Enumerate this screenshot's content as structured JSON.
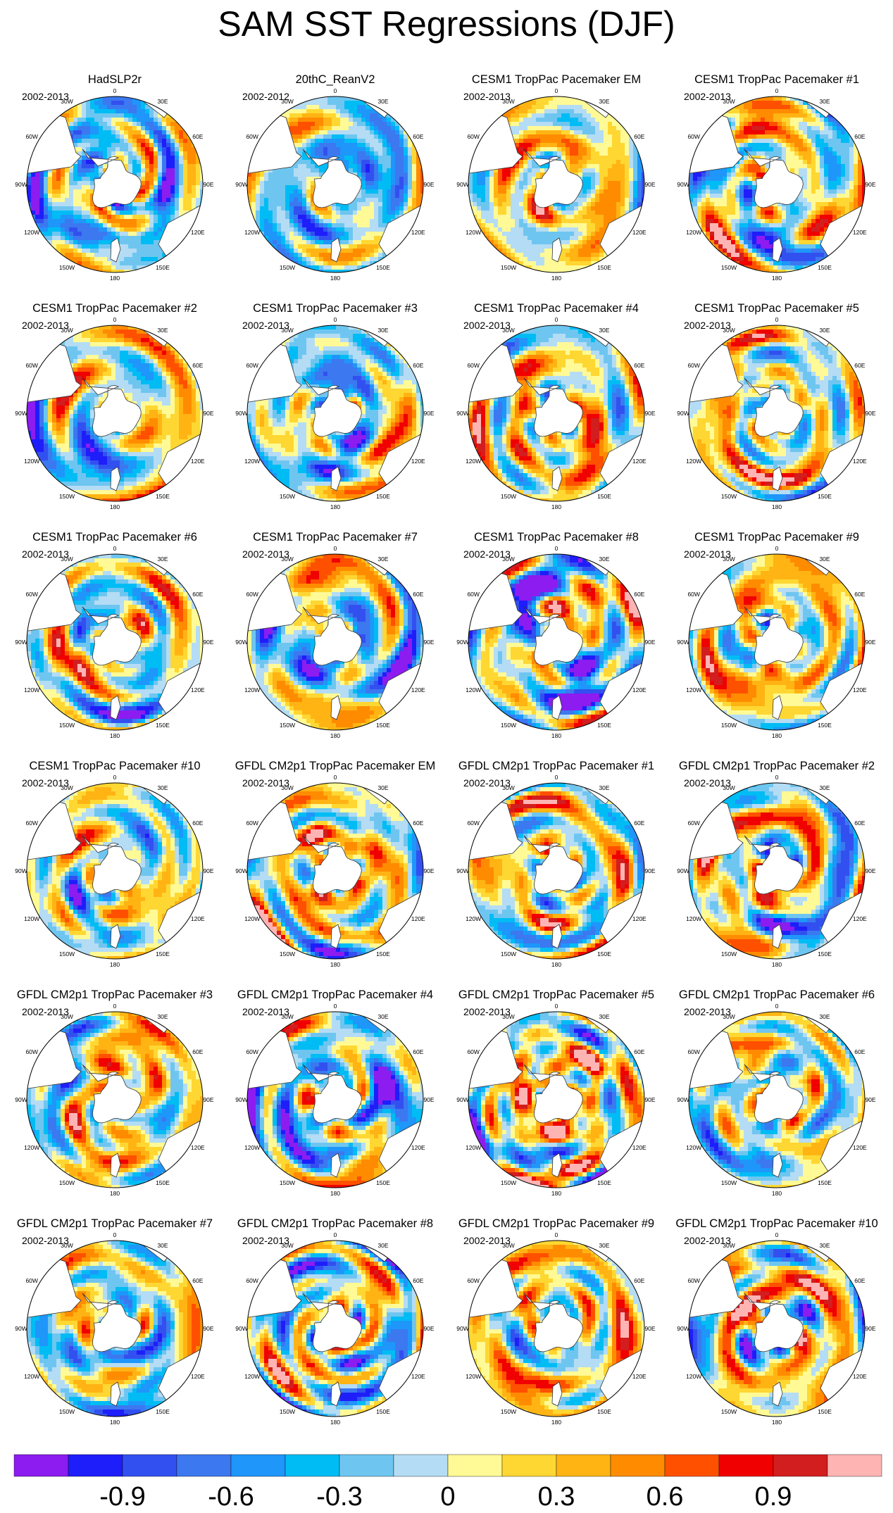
{
  "title": "SAM SST Regressions (DJF)",
  "colorbar": {
    "colors": [
      "#8c1cf0",
      "#1e1efa",
      "#3250f0",
      "#3c78f0",
      "#1e96fa",
      "#00bcf5",
      "#6ec6f0",
      "#b4dcf5",
      "#fffa96",
      "#ffd732",
      "#ffb414",
      "#ff8c00",
      "#ff5000",
      "#f00000",
      "#d21e1e",
      "#ffb4b4"
    ],
    "ticks": [
      {
        "label": "-0.9",
        "after_box": 2
      },
      {
        "label": "-0.6",
        "after_box": 4
      },
      {
        "label": "-0.3",
        "after_box": 6
      },
      {
        "label": "0",
        "after_box": 8
      },
      {
        "label": "0.3",
        "after_box": 10
      },
      {
        "label": "0.6",
        "after_box": 12
      },
      {
        "label": "0.9",
        "after_box": 14
      }
    ]
  },
  "lon_labels": [
    "0",
    "30E",
    "60E",
    "90E",
    "120E",
    "150E",
    "180",
    "150W",
    "120W",
    "90W",
    "60W",
    "30W"
  ],
  "panels": [
    {
      "title": "HadSLP2r",
      "period": "2002-2013",
      "seed": 11
    },
    {
      "title": "20thC_ReanV2",
      "period": "2002-2012",
      "seed": 23
    },
    {
      "title": "CESM1 TropPac Pacemaker EM",
      "period": "2002-2013",
      "seed": 37
    },
    {
      "title": "CESM1 TropPac Pacemaker #1",
      "period": "2002-2013",
      "seed": 41
    },
    {
      "title": "CESM1 TropPac Pacemaker #2",
      "period": "2002-2013",
      "seed": 53
    },
    {
      "title": "CESM1 TropPac Pacemaker #3",
      "period": "2002-2013",
      "seed": 67
    },
    {
      "title": "CESM1 TropPac Pacemaker #4",
      "period": "2002-2013",
      "seed": 71
    },
    {
      "title": "CESM1 TropPac Pacemaker #5",
      "period": "2002-2013",
      "seed": 83
    },
    {
      "title": "CESM1 TropPac Pacemaker #6",
      "period": "2002-2013",
      "seed": 97
    },
    {
      "title": "CESM1 TropPac Pacemaker #7",
      "period": "2002-2013",
      "seed": 101
    },
    {
      "title": "CESM1 TropPac Pacemaker #8",
      "period": "2002-2013",
      "seed": 113
    },
    {
      "title": "CESM1 TropPac Pacemaker #9",
      "period": "2002-2013",
      "seed": 127
    },
    {
      "title": "CESM1 TropPac Pacemaker #10",
      "period": "2002-2013",
      "seed": 131
    },
    {
      "title": "GFDL CM2p1 TropPac Pacemaker EM",
      "period": "2002-2013",
      "seed": 149
    },
    {
      "title": "GFDL CM2p1 TropPac Pacemaker #1",
      "period": "2002-2013",
      "seed": 151
    },
    {
      "title": "GFDL CM2p1 TropPac Pacemaker #2",
      "period": "2002-2013",
      "seed": 163
    },
    {
      "title": "GFDL CM2p1 TropPac Pacemaker #3",
      "period": "2002-2013",
      "seed": 173
    },
    {
      "title": "GFDL CM2p1 TropPac Pacemaker #4",
      "period": "2002-2013",
      "seed": 181
    },
    {
      "title": "GFDL CM2p1 TropPac Pacemaker #5",
      "period": "2002-2013",
      "seed": 193
    },
    {
      "title": "GFDL CM2p1 TropPac Pacemaker #6",
      "period": "2002-2013",
      "seed": 199
    },
    {
      "title": "GFDL CM2p1 TropPac Pacemaker #7",
      "period": "2002-2013",
      "seed": 211
    },
    {
      "title": "GFDL CM2p1 TropPac Pacemaker #8",
      "period": "2002-2013",
      "seed": 223
    },
    {
      "title": "GFDL CM2p1 TropPac Pacemaker #9",
      "period": "2002-2013",
      "seed": 227
    },
    {
      "title": "GFDL CM2p1 TropPac Pacemaker #10",
      "period": "2002-2013",
      "seed": 239
    }
  ]
}
